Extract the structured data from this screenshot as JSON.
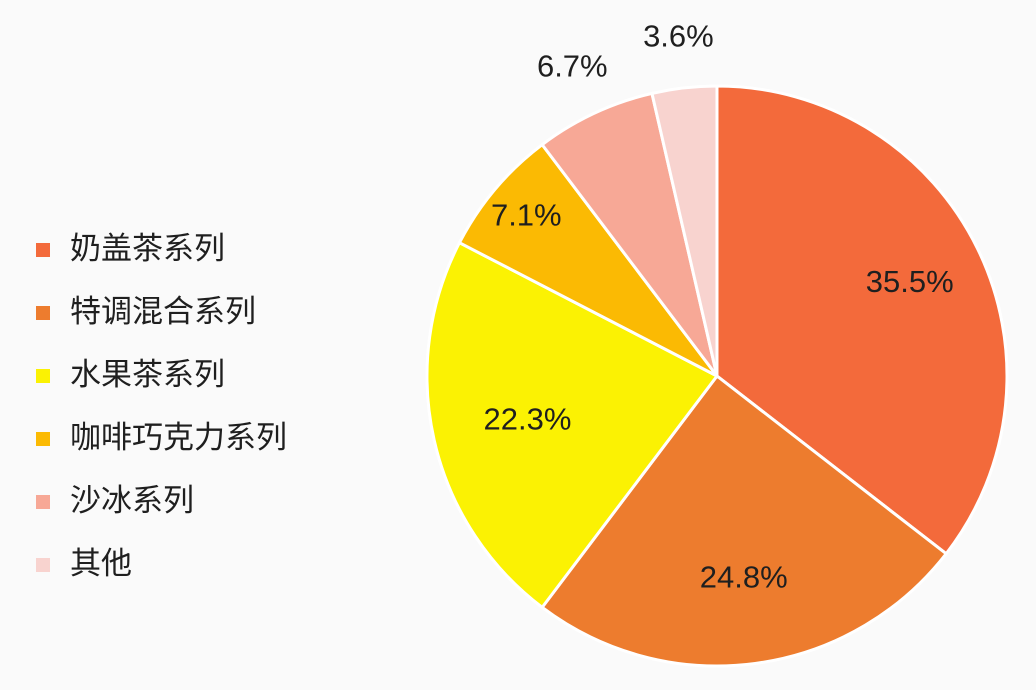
{
  "chart_data": {
    "type": "pie",
    "title": "",
    "legend_position": "left",
    "start": "top",
    "direction": "clockwise",
    "slices": [
      {
        "label": "奶盖茶系列",
        "value": 35.5,
        "value_label": "35.5%",
        "color": "#f36a3b"
      },
      {
        "label": "特调混合系列",
        "value": 24.8,
        "value_label": "24.8%",
        "color": "#ed7c2e"
      },
      {
        "label": "水果茶系列",
        "value": 22.3,
        "value_label": "22.3%",
        "color": "#fbf203"
      },
      {
        "label": "咖啡巧克力系列",
        "value": 7.1,
        "value_label": "7.1%",
        "color": "#fbba03"
      },
      {
        "label": "沙冰系列",
        "value": 6.7,
        "value_label": "6.7%",
        "color": "#f7a896"
      },
      {
        "label": "其他",
        "value": 3.6,
        "value_label": "3.6%",
        "color": "#f8d3cf"
      }
    ]
  }
}
